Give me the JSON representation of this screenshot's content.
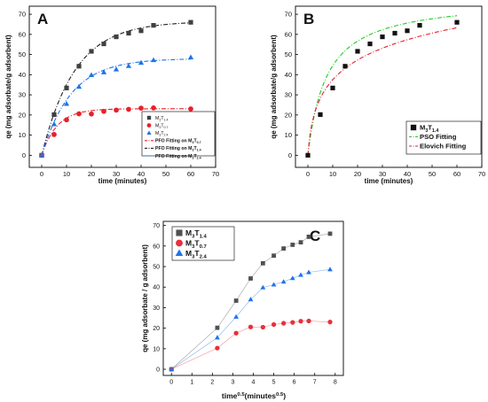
{
  "chart_data": [
    {
      "panel_label": "A",
      "type": "scatter",
      "xlabel": "time (minutes)",
      "ylabel": "qe (mg adsorbate/g adsorbent)",
      "xlim": [
        -5,
        70
      ],
      "ylim": [
        -6,
        74
      ],
      "xticks": [
        0,
        10,
        20,
        30,
        40,
        50,
        60,
        70
      ],
      "yticks": [
        0,
        10,
        20,
        30,
        40,
        50,
        60,
        70
      ],
      "legend_position": "bottom-right",
      "series": [
        {
          "name": "M3T1.4",
          "marker": "square",
          "color": "#404040",
          "x": [
            0,
            5,
            10,
            15,
            20,
            25,
            30,
            35,
            40,
            45,
            60
          ],
          "y": [
            0,
            20.2,
            33.4,
            44.2,
            51.6,
            55.3,
            58.8,
            60.6,
            61.8,
            64.5,
            66.0
          ]
        },
        {
          "name": "M3T0.7",
          "marker": "circle",
          "color": "#e8202a",
          "x": [
            0,
            5,
            10,
            15,
            20,
            25,
            30,
            35,
            40,
            45,
            60
          ],
          "y": [
            0,
            10.3,
            17.6,
            20.6,
            20.5,
            21.8,
            22.4,
            22.8,
            23.4,
            23.5,
            23.0
          ]
        },
        {
          "name": "M3T2.4",
          "marker": "triangle",
          "color": "#1e73e8",
          "x": [
            0,
            5,
            10,
            15,
            20,
            25,
            30,
            35,
            40,
            45,
            60
          ],
          "y": [
            0,
            15.4,
            25.5,
            34.0,
            39.8,
            41.2,
            42.6,
            44.3,
            45.9,
            47.2,
            48.6
          ]
        }
      ],
      "fits": [
        {
          "name": "PFO Fitting on M3T0.7",
          "color": "#e8202a",
          "dash": "5,2,1,2",
          "qe": 23.1,
          "k": 0.16
        },
        {
          "name": "PFO Fitting on M3T1.4",
          "color": "#222222",
          "dash": "5,2,1,2",
          "qe": 66.5,
          "k": 0.075
        },
        {
          "name": "PFO Fitting on M3T2.4",
          "color": "#1e73e8",
          "dash": "5,2,1,2",
          "qe": 48.0,
          "k": 0.085
        }
      ]
    },
    {
      "panel_label": "B",
      "type": "scatter",
      "xlabel": "time (minutes)",
      "ylabel": "qe (mg adsorbate/g adsorbent)",
      "xlim": [
        -5,
        70
      ],
      "ylim": [
        -6,
        74
      ],
      "xticks": [
        0,
        10,
        20,
        30,
        40,
        50,
        60,
        70
      ],
      "yticks": [
        0,
        10,
        20,
        30,
        40,
        50,
        60,
        70
      ],
      "legend_position": "bottom-right",
      "series": [
        {
          "name": "M3T1.4",
          "marker": "square",
          "color": "#111111",
          "x": [
            0,
            5,
            10,
            15,
            20,
            25,
            30,
            35,
            40,
            45,
            60
          ],
          "y": [
            0,
            20.2,
            33.4,
            44.2,
            51.6,
            55.3,
            58.8,
            60.6,
            61.8,
            64.5,
            66.0
          ]
        }
      ],
      "fits": [
        {
          "name": "PSO Fitting",
          "color": "#22cc22",
          "dash": "5,2,1,2",
          "model": "pso",
          "qe": 78,
          "k": 0.0017
        },
        {
          "name": "Elovich Fitting",
          "color": "#e8202a",
          "dash": "5,2,1,2",
          "model": "elovich",
          "a": 16.8,
          "b": 0.0667
        }
      ]
    },
    {
      "panel_label": "C",
      "type": "line",
      "xlabel": "time0.5(minutes0.5)",
      "ylabel": "qe (mg adsorbate / g adsorbent)",
      "xlim": [
        -0.4,
        8.4
      ],
      "ylim": [
        -3,
        72
      ],
      "xticks": [
        0,
        1,
        2,
        3,
        4,
        5,
        6,
        7,
        8
      ],
      "yticks": [
        0,
        10,
        20,
        30,
        40,
        50,
        60,
        70
      ],
      "legend_position": "top-left",
      "series": [
        {
          "name": "M3T1.4",
          "marker": "square",
          "color": "#505050",
          "x": [
            0,
            2.24,
            3.16,
            3.87,
            4.47,
            5.0,
            5.48,
            5.92,
            6.32,
            6.71,
            7.75
          ],
          "y": [
            0,
            20.2,
            33.4,
            44.2,
            51.6,
            55.3,
            58.8,
            60.6,
            61.8,
            64.5,
            66.0
          ]
        },
        {
          "name": "M3T0.7",
          "marker": "circle",
          "color": "#e8303a",
          "x": [
            0,
            2.24,
            3.16,
            3.87,
            4.47,
            5.0,
            5.48,
            5.92,
            6.32,
            6.71,
            7.75
          ],
          "y": [
            0,
            10.3,
            17.6,
            20.6,
            20.5,
            21.8,
            22.4,
            22.8,
            23.4,
            23.5,
            23.0
          ]
        },
        {
          "name": "M3T2.4",
          "marker": "triangle",
          "color": "#1e73e8",
          "x": [
            0,
            2.24,
            3.16,
            3.87,
            4.47,
            5.0,
            5.48,
            5.92,
            6.32,
            6.71,
            7.75
          ],
          "y": [
            0,
            15.4,
            25.5,
            34.0,
            39.8,
            41.2,
            42.6,
            44.3,
            45.9,
            47.2,
            48.6
          ]
        }
      ]
    }
  ]
}
